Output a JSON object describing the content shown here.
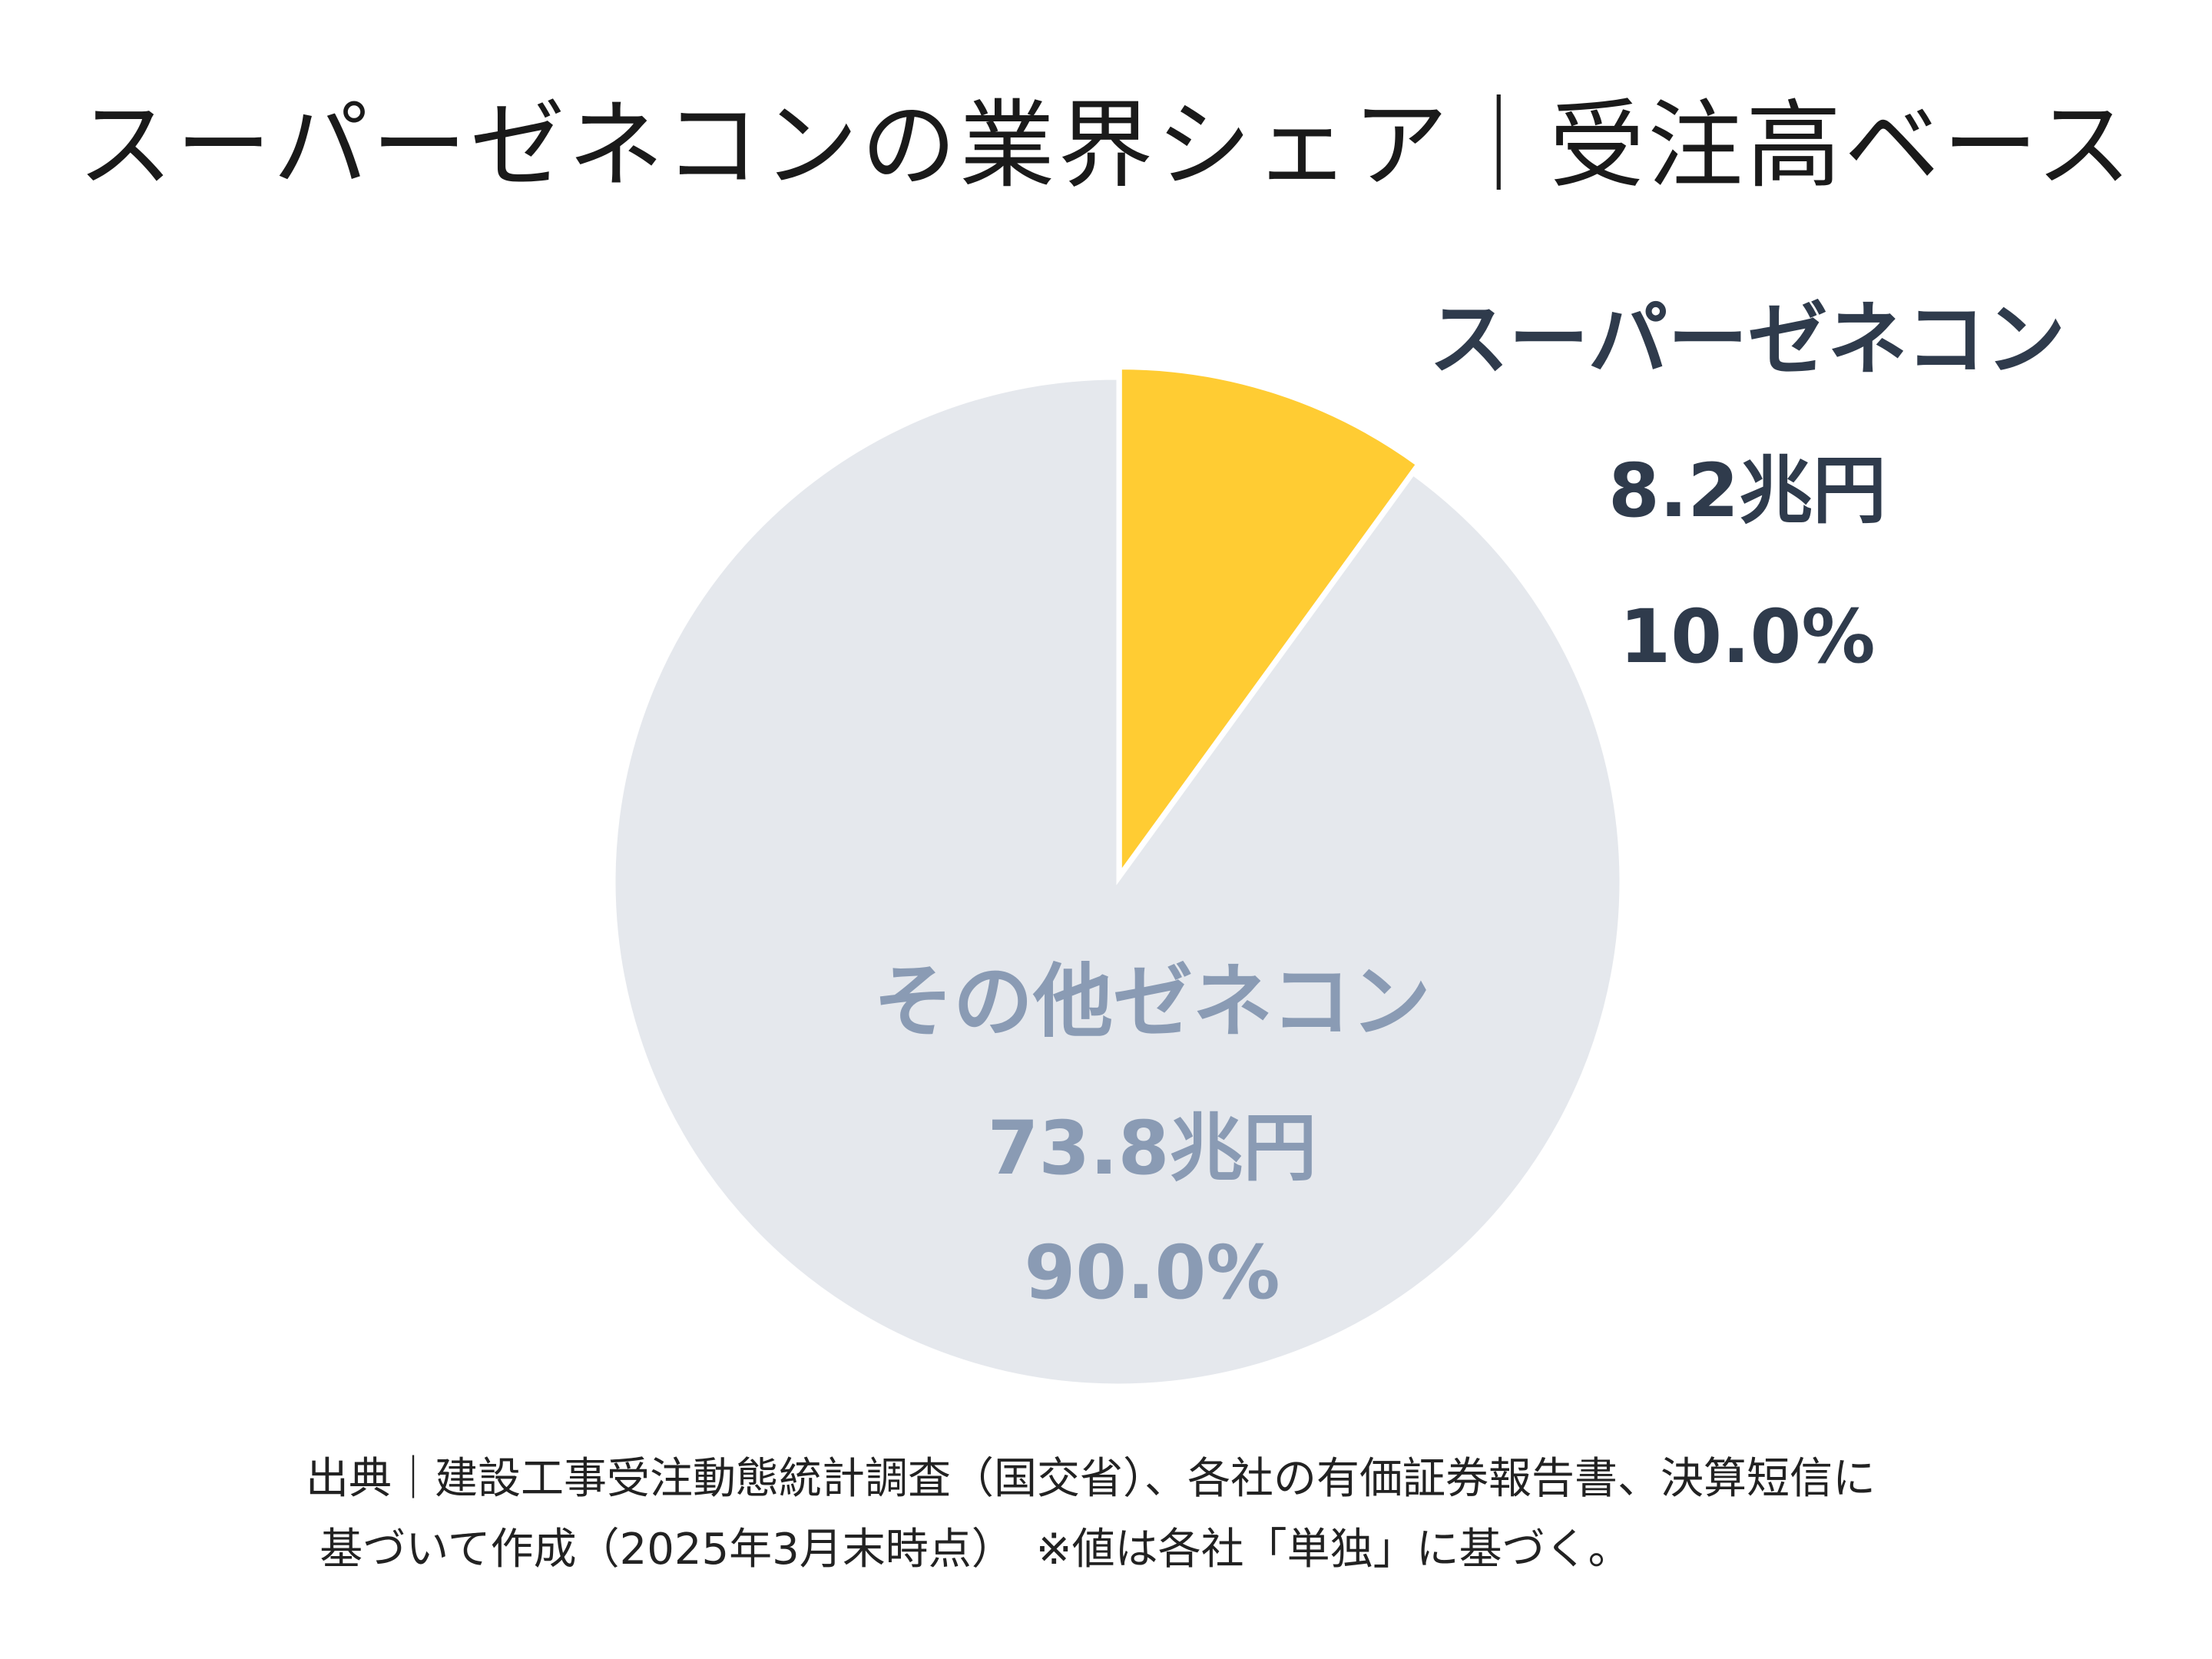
{
  "title": "スーパーゼネコンの業界シェア｜受注高ベース",
  "chart_data": {
    "type": "pie",
    "title": "スーパーゼネコンの業界シェア｜受注高ベース",
    "slices": [
      {
        "name": "スーパーゼネコン",
        "value": 8.2,
        "value_label": "8.2兆円",
        "percent": 10.0,
        "percent_label": "10.0%",
        "color": "#FFCC33",
        "label_color": "#2F3B4C"
      },
      {
        "name": "その他ゼネコン",
        "value": 73.8,
        "value_label": "73.8兆円",
        "percent": 90.0,
        "percent_label": "90.0%",
        "color": "#E5E8ED",
        "label_color": "#8A9BB4"
      }
    ],
    "start": "12 o'clock",
    "direction": "clockwise"
  },
  "source": {
    "line1": "出典｜建設工事受注動態統計調査（国交省）、各社の有価証券報告書、決算短信に",
    "line2": "基づいて作成（2025年3月末時点）　※値は各社「単独」に基づく。"
  }
}
